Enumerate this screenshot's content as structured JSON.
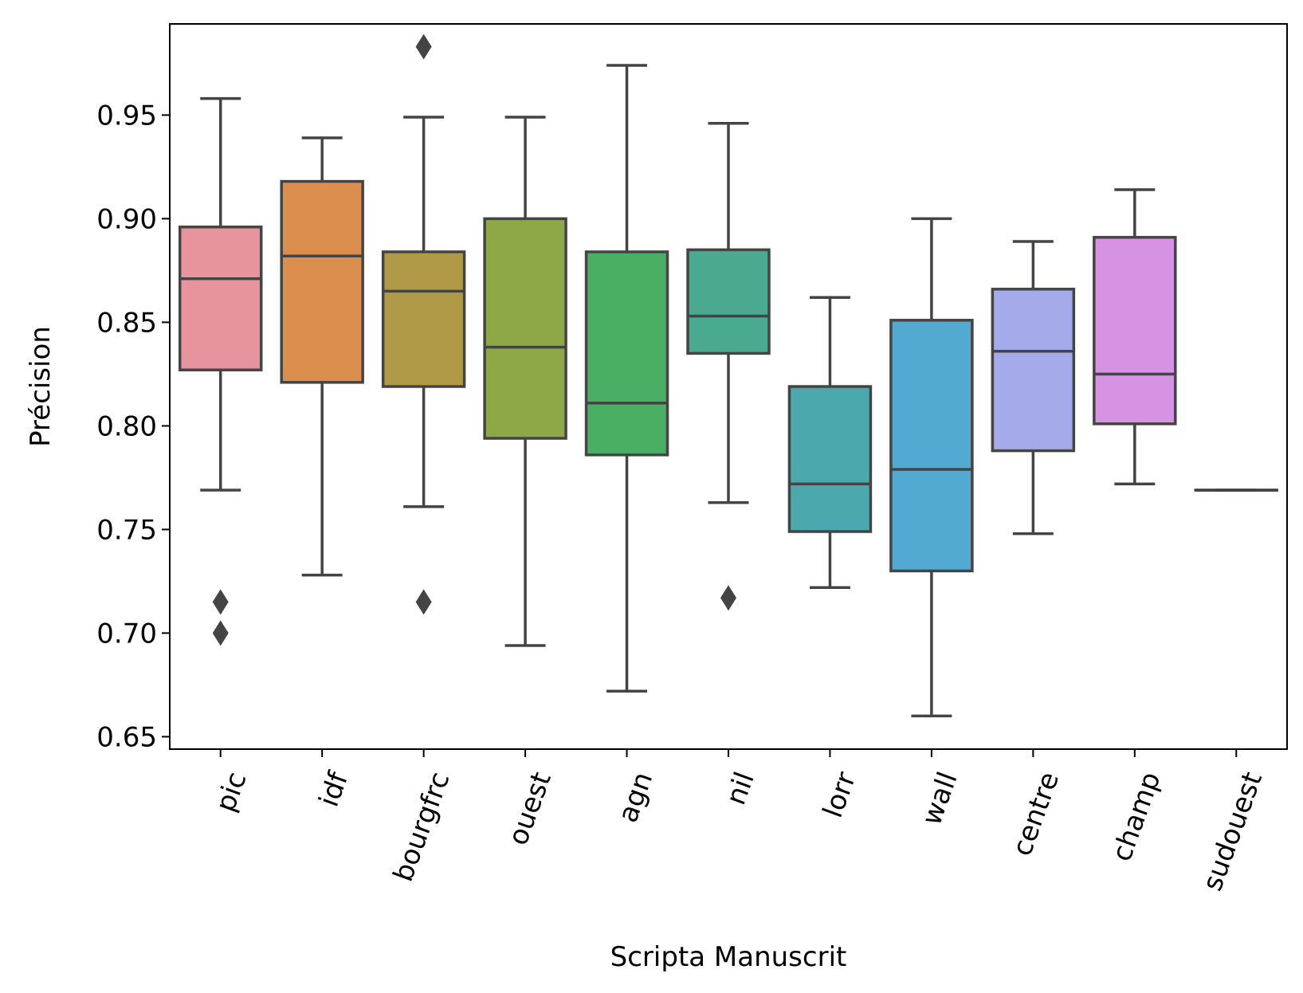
{
  "chart_data": {
    "type": "box",
    "xlabel": "Scripta Manuscrit",
    "ylabel": "Précision",
    "ylim": [
      0.644,
      0.994
    ],
    "yticks": [
      0.65,
      0.7,
      0.75,
      0.8,
      0.85,
      0.9,
      0.95
    ],
    "ytick_labels": [
      "0.65",
      "0.70",
      "0.75",
      "0.80",
      "0.85",
      "0.90",
      "0.95"
    ],
    "categories": [
      "pic",
      "idf",
      "bourgfrc",
      "ouest",
      "agn",
      "nil",
      "lorr",
      "wall",
      "centre",
      "champ",
      "sudouest"
    ],
    "grid": false,
    "stroke_color": "#444444",
    "boxes": [
      {
        "category": "pic",
        "color": "#e8949f",
        "whisker_low": 0.769,
        "q1": 0.827,
        "median": 0.871,
        "q3": 0.896,
        "whisker_high": 0.958,
        "outliers": [
          0.715,
          0.7
        ]
      },
      {
        "category": "idf",
        "color": "#dc8e4e",
        "whisker_low": 0.728,
        "q1": 0.821,
        "median": 0.882,
        "q3": 0.918,
        "whisker_high": 0.939,
        "outliers": []
      },
      {
        "category": "bourgfrc",
        "color": "#b09a47",
        "whisker_low": 0.761,
        "q1": 0.819,
        "median": 0.865,
        "q3": 0.884,
        "whisker_high": 0.949,
        "outliers": [
          0.983,
          0.715
        ]
      },
      {
        "category": "ouest",
        "color": "#8ea847",
        "whisker_low": 0.694,
        "q1": 0.794,
        "median": 0.838,
        "q3": 0.9,
        "whisker_high": 0.949,
        "outliers": []
      },
      {
        "category": "agn",
        "color": "#4aaf64",
        "whisker_low": 0.672,
        "q1": 0.786,
        "median": 0.811,
        "q3": 0.884,
        "whisker_high": 0.974,
        "outliers": []
      },
      {
        "category": "nil",
        "color": "#4aaa8f",
        "whisker_low": 0.763,
        "q1": 0.835,
        "median": 0.853,
        "q3": 0.885,
        "whisker_high": 0.946,
        "outliers": [
          0.717
        ]
      },
      {
        "category": "lorr",
        "color": "#4ba9ad",
        "whisker_low": 0.722,
        "q1": 0.749,
        "median": 0.772,
        "q3": 0.819,
        "whisker_high": 0.862,
        "outliers": []
      },
      {
        "category": "wall",
        "color": "#52aad3",
        "whisker_low": 0.66,
        "q1": 0.73,
        "median": 0.779,
        "q3": 0.851,
        "whisker_high": 0.9,
        "outliers": []
      },
      {
        "category": "centre",
        "color": "#a4aaea",
        "whisker_low": 0.748,
        "q1": 0.788,
        "median": 0.836,
        "q3": 0.866,
        "whisker_high": 0.889,
        "outliers": []
      },
      {
        "category": "champ",
        "color": "#d692e3",
        "whisker_low": 0.772,
        "q1": 0.801,
        "median": 0.825,
        "q3": 0.891,
        "whisker_high": 0.914,
        "outliers": []
      },
      {
        "category": "sudouest",
        "color": "#ee91c4",
        "whisker_low": 0.769,
        "q1": 0.769,
        "median": 0.769,
        "q3": 0.769,
        "whisker_high": 0.769,
        "outliers": []
      }
    ]
  }
}
